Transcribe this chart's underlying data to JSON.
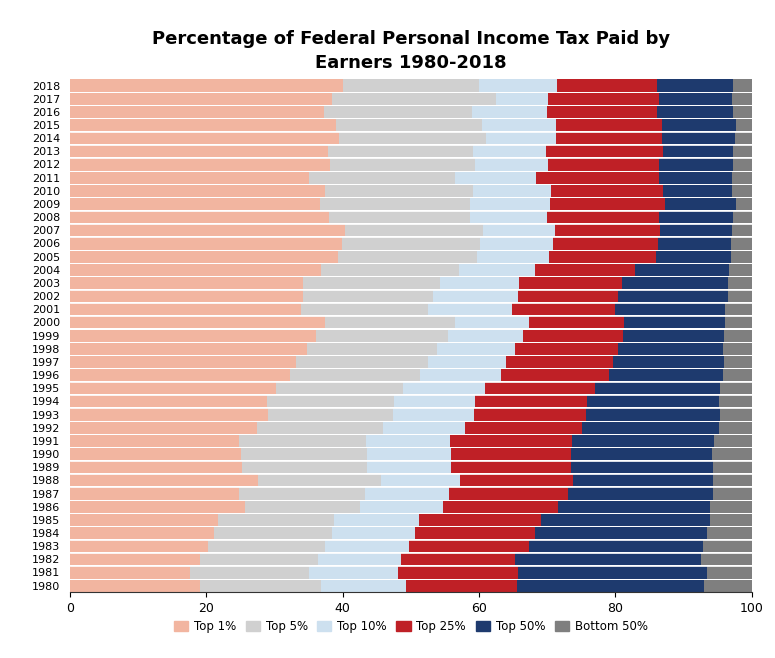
{
  "title": "Percentage of Federal Personal Income Tax Paid by\nEarners 1980-2018",
  "years": [
    1980,
    1981,
    1982,
    1983,
    1984,
    1985,
    1986,
    1987,
    1988,
    1989,
    1990,
    1991,
    1992,
    1993,
    1994,
    1995,
    1996,
    1997,
    1998,
    1999,
    2000,
    2001,
    2002,
    2003,
    2004,
    2005,
    2006,
    2007,
    2008,
    2009,
    2010,
    2011,
    2012,
    2013,
    2014,
    2015,
    2016,
    2017,
    2018
  ],
  "top1": [
    19.05,
    17.58,
    19.03,
    20.32,
    21.13,
    21.81,
    25.75,
    24.81,
    27.58,
    25.24,
    25.13,
    24.82,
    27.45,
    29.01,
    28.86,
    30.26,
    32.31,
    33.17,
    34.75,
    36.18,
    37.42,
    33.89,
    34.27,
    34.27,
    36.89,
    39.38,
    39.89,
    40.42,
    38.02,
    36.73,
    37.38,
    35.06,
    38.09,
    37.8,
    39.48,
    39.04,
    37.32,
    38.47,
    40.09
  ],
  "top5": [
    36.84,
    35.06,
    36.47,
    37.45,
    38.45,
    38.78,
    42.57,
    43.26,
    45.62,
    43.56,
    43.64,
    43.41,
    45.88,
    47.36,
    47.52,
    48.91,
    51.36,
    52.51,
    53.84,
    55.45,
    56.47,
    52.56,
    53.33,
    54.36,
    57.13,
    59.67,
    60.14,
    60.61,
    58.72,
    58.72,
    59.07,
    56.45,
    59.44,
    59.08,
    60.99,
    60.46,
    58.99,
    62.48,
    59.96
  ],
  "top10": [
    49.28,
    48.07,
    48.54,
    49.71,
    50.65,
    51.22,
    54.76,
    55.61,
    57.28,
    55.83,
    55.84,
    55.82,
    57.96,
    59.24,
    59.45,
    60.87,
    63.18,
    64.03,
    65.34,
    66.45,
    67.33,
    64.89,
    65.73,
    65.84,
    68.19,
    70.3,
    70.79,
    71.22,
    69.94,
    70.47,
    70.62,
    68.35,
    70.15,
    69.8,
    71.34,
    71.26,
    70.0,
    70.08,
    71.38
  ],
  "top25": [
    65.63,
    65.73,
    65.3,
    67.37,
    68.22,
    69.03,
    71.58,
    73.1,
    73.83,
    73.53,
    73.47,
    73.65,
    75.17,
    75.67,
    75.91,
    77.04,
    79.1,
    79.69,
    80.45,
    81.18,
    81.22,
    79.99,
    80.46,
    80.94,
    82.9,
    85.99,
    86.27,
    86.59,
    86.34,
    87.3,
    87.06,
    86.37,
    86.36,
    87.04,
    86.9,
    86.82,
    86.12,
    86.45,
    86.13
  ],
  "top50": [
    92.96,
    93.44,
    92.51,
    92.84,
    93.45,
    93.88,
    93.84,
    94.26,
    94.27,
    94.28,
    94.18,
    94.52,
    95.26,
    95.33,
    95.23,
    95.32,
    95.82,
    95.88,
    95.76,
    95.98,
    96.09,
    96.03,
    96.5,
    96.51,
    96.7,
    96.93,
    97.01,
    97.11,
    97.3,
    97.75,
    97.06,
    97.17,
    97.22,
    97.3,
    97.59,
    97.62,
    97.28,
    97.04,
    97.22
  ],
  "bottom50": [
    7.04,
    6.56,
    7.49,
    7.16,
    6.55,
    6.12,
    6.16,
    5.74,
    5.73,
    5.72,
    5.82,
    5.48,
    4.74,
    4.67,
    4.77,
    4.68,
    4.18,
    4.12,
    4.24,
    4.02,
    3.91,
    3.97,
    3.5,
    3.49,
    3.3,
    3.07,
    2.99,
    2.89,
    2.7,
    2.25,
    2.94,
    2.83,
    2.78,
    2.7,
    2.41,
    2.38,
    2.72,
    2.96,
    2.78
  ],
  "colors": {
    "top1": "#f2b5a0",
    "top5_add": "#d0d0d0",
    "top10_add": "#cde0ef",
    "top25_add": "#bf2026",
    "top50_add": "#1e3a6e",
    "bottom50": "#7f7f7f"
  },
  "legend_labels": [
    "Top 1%",
    "Top 5%",
    "Top 10%",
    "Top 25%",
    "Top 50%",
    "Bottom 50%"
  ],
  "legend_colors": [
    "#f2b5a0",
    "#d0d0d0",
    "#cde0ef",
    "#bf2026",
    "#1e3a6e",
    "#7f7f7f"
  ],
  "xlim": [
    0,
    100
  ],
  "xticks": [
    0,
    20,
    40,
    60,
    80,
    100
  ],
  "title_fontsize": 13,
  "tick_fontsize": 8
}
